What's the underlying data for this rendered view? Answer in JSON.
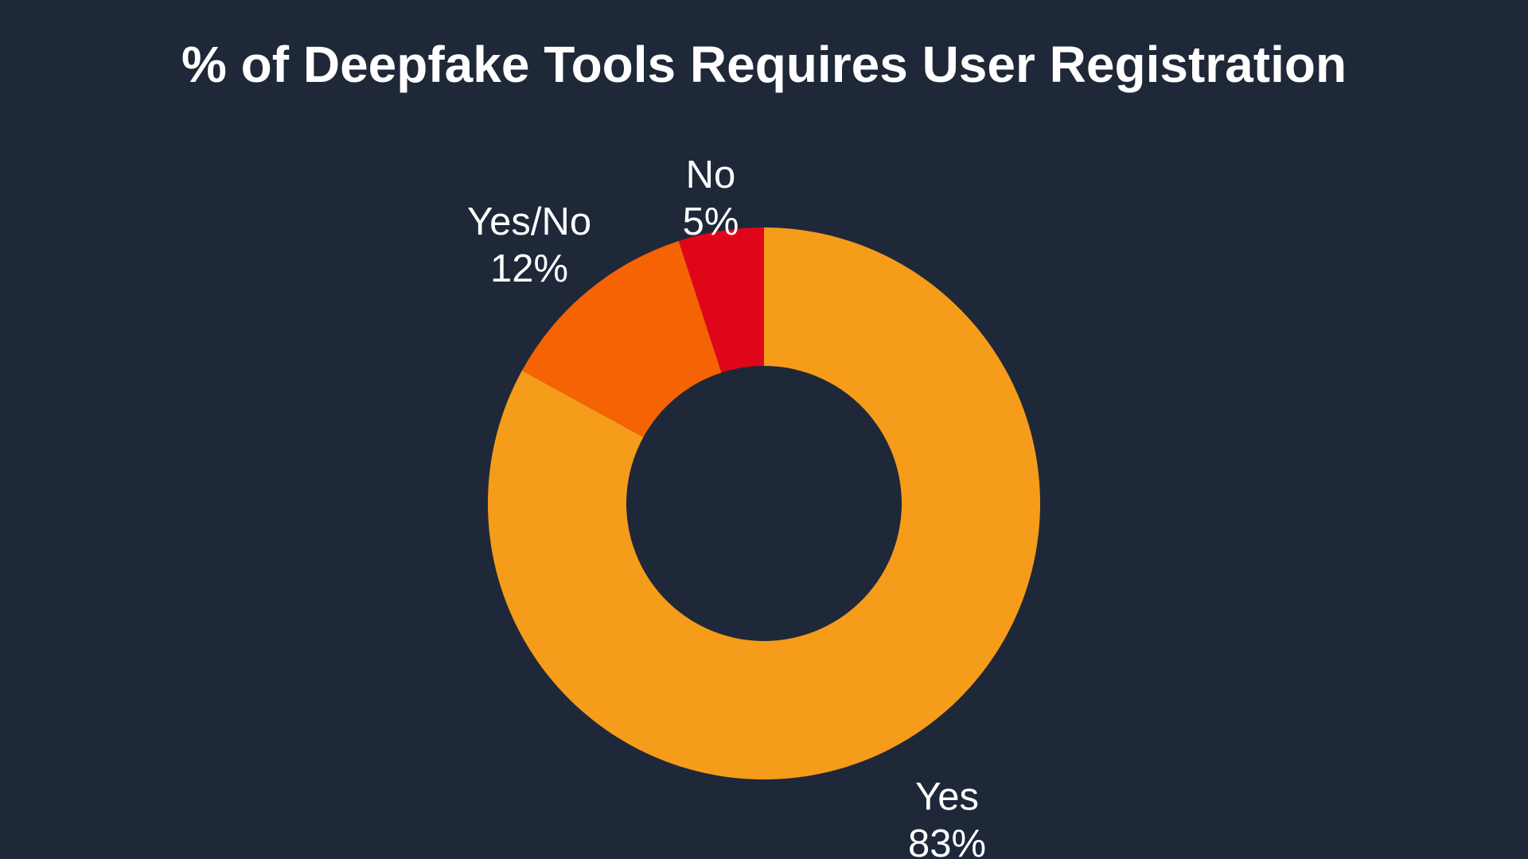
{
  "chart_data": {
    "type": "pie",
    "donut": true,
    "title": "% of Deepfake Tools Requires User Registration",
    "slices": [
      {
        "label": "Yes",
        "value": 83,
        "display": "83%",
        "color": "#f59c1a"
      },
      {
        "label": "Yes/No",
        "value": 12,
        "display": "12%",
        "color": "#f56304"
      },
      {
        "label": "No",
        "value": 5,
        "display": "5%",
        "color": "#e0061a"
      }
    ],
    "legend": "none"
  },
  "colors": {
    "background": "#1f2838",
    "text": "#ffffff"
  }
}
